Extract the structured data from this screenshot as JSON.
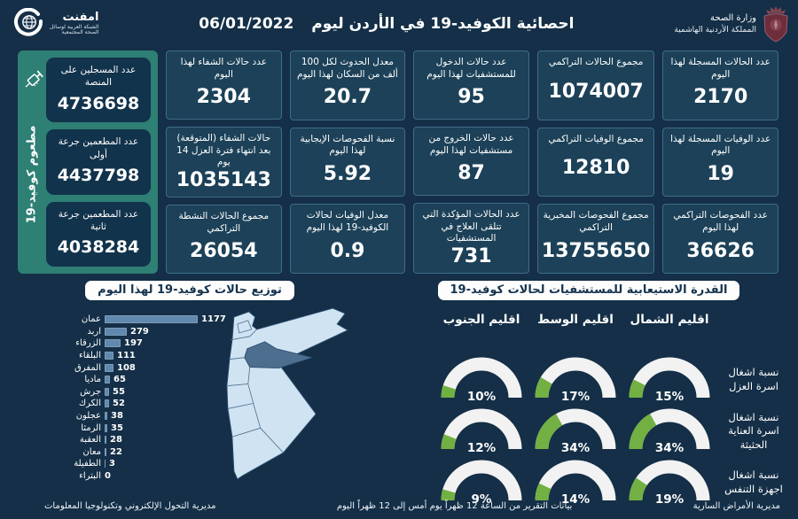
{
  "header": {
    "title": "احصائية الكوفيد-19 في الأردن ليوم",
    "date": "06/01/2022",
    "left_logo": {
      "name": "امفنت",
      "sub1": "الشبكة العربية لوسائل",
      "sub2": "الصحة المجتمعية"
    },
    "right_logo": {
      "line1": "وزارة الصحة",
      "line2": "المملكة الأردنية الهاشمية"
    }
  },
  "colors": {
    "background": "#142f47",
    "card_bg": "#1c4158",
    "card_border": "#406c89",
    "accent_teal": "#2e7f74",
    "bar_fill": "#6189ad",
    "gauge_fill": "#72b043",
    "gauge_track": "#f2f2f2",
    "map_fill": "#cfe3f2",
    "map_highlight": "#4d6e8e"
  },
  "stats": {
    "columns": [
      {
        "cells": [
          {
            "label": "عدد الحالات المسجلة لهذا اليوم",
            "value": "2170"
          },
          {
            "label": "عدد الوفيات المسجلة لهذا اليوم",
            "value": "19"
          },
          {
            "label": "عدد الفحوصات التراكمي لهذا اليوم",
            "value": "36626"
          }
        ]
      },
      {
        "cells": [
          {
            "label": "مجموع الحالات التراكمي",
            "value": "1074007"
          },
          {
            "label": "مجموع الوفيات التراكمي",
            "value": "12810"
          },
          {
            "label": "مجموع الفحوصات المخبرية التراكمي",
            "value": "13755650"
          }
        ]
      },
      {
        "cells": [
          {
            "label": "عدد حالات الدخول للمستشفيات لهذا اليوم",
            "value": "95"
          },
          {
            "label": "عدد حالات الخروج من مستشفيات لهذا اليوم",
            "value": "87"
          },
          {
            "label": "عدد الحالات المؤكدة التي تتلقى العلاج في المستشفيات",
            "value": "731"
          }
        ]
      },
      {
        "cells": [
          {
            "label": "معدل الحدوث لكل 100 ألف من السكان لهذا اليوم",
            "value": "20.7"
          },
          {
            "label": "نسبة الفحوصات الإيجابية لهذا اليوم",
            "value": "5.92"
          },
          {
            "label": "معدل الوفيات لحالات الكوفيد-19 لهذا اليوم",
            "value": "0.9"
          }
        ]
      },
      {
        "cells": [
          {
            "label": "عدد حالات الشفاء لهذا اليوم",
            "value": "2304"
          },
          {
            "label": "حالات الشفاء (المتوقعة) بعد انتهاء فترة العزل 14 يوم",
            "value": "1035143"
          },
          {
            "label": "مجموع الحالات النشطة التراكمي",
            "value": "26054"
          }
        ]
      }
    ]
  },
  "vaccine_panel": {
    "vertical_label": "مطعوم كوفيد-19",
    "icon": "syringe-icon",
    "cells": [
      {
        "label": "عدد المسجلين على المنصة",
        "value": "4736698"
      },
      {
        "label": "عدد المطعمين جرعة أولى",
        "value": "4437798"
      },
      {
        "label": "عدد المطعمين جرعة ثانية",
        "value": "4038284"
      }
    ]
  },
  "chart_data": [
    {
      "type": "bar",
      "orientation": "horizontal",
      "title": "توزيع حالات كوفيد-19 لهذا اليوم",
      "categories": [
        "عمان",
        "اربد",
        "الزرقاء",
        "البلقاء",
        "المفرق",
        "ماديا",
        "جرش",
        "الكرك",
        "عجلون",
        "الرمثا",
        "العقبة",
        "معان",
        "الطفيلة",
        "البتراء"
      ],
      "values": [
        1177,
        279,
        197,
        111,
        108,
        65,
        55,
        52,
        38,
        35,
        28,
        22,
        3,
        0
      ],
      "xlim": [
        0,
        1200
      ],
      "bar_color": "#6189ad",
      "legend": "none",
      "grid": false
    },
    {
      "type": "gauge-grid",
      "title": "القدرة الاستيعابية للمستشفيات لحالات كوفيد-19",
      "columns": [
        "اقليم الشمال",
        "اقليم الوسط",
        "اقليم الجنوب"
      ],
      "rows": [
        {
          "label": "نسبة اشغال اسرة العزل",
          "values": [
            15,
            17,
            10
          ]
        },
        {
          "label": "نسبة اشغال اسرة العناية الحثيثة",
          "values": [
            34,
            34,
            12
          ]
        },
        {
          "label": "نسبة اشغال اجهزة التنفس",
          "values": [
            19,
            14,
            9
          ]
        }
      ],
      "unit": "%",
      "range": [
        0,
        100
      ],
      "fill_color": "#72b043",
      "track_color": "#f2f2f2"
    }
  ],
  "footer": {
    "right": "مديرية الأمراض السارية",
    "center": "بيانات التقرير من الساعة 12 ظهراً يوم أمس إلى 12 ظهراً اليوم",
    "left": "مديرية التحول الإلكتروني وتكنولوجيا المعلومات"
  }
}
